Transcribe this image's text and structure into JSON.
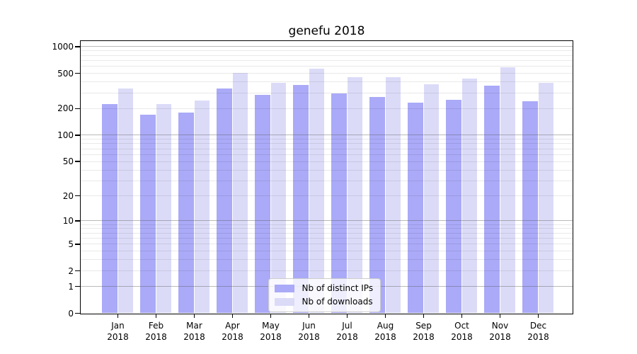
{
  "title": "genefu 2018",
  "colors": {
    "distinct_ips": "#aaaaf8",
    "downloads": "#dbdbf8",
    "axis": "#000000",
    "major_grid": "#b3b3b3",
    "minor_grid": "#e9e9e9",
    "legend_border": "#cccccc"
  },
  "chart_data": {
    "type": "bar",
    "title": "genefu 2018",
    "categories": [
      "Jan",
      "Feb",
      "Mar",
      "Apr",
      "May",
      "Jun",
      "Jul",
      "Aug",
      "Sep",
      "Oct",
      "Nov",
      "Dec"
    ],
    "year": "2018",
    "series": [
      {
        "name": "Nb of distinct IPs",
        "values": [
          225,
          170,
          180,
          335,
          285,
          365,
          295,
          270,
          230,
          250,
          360,
          240
        ]
      },
      {
        "name": "Nb of downloads",
        "values": [
          335,
          225,
          245,
          500,
          385,
          565,
          450,
          450,
          375,
          430,
          585,
          385
        ]
      }
    ],
    "y_ticks": [
      0,
      1,
      2,
      5,
      10,
      20,
      50,
      100,
      200,
      500,
      1000
    ],
    "y_scale": "log10(value+1)",
    "ylim": [
      0,
      1210
    ],
    "xlabel": "",
    "ylabel": "",
    "grid": "horizontal minor+major, drawn over bars",
    "legend_position": "inside-bottom-center"
  }
}
